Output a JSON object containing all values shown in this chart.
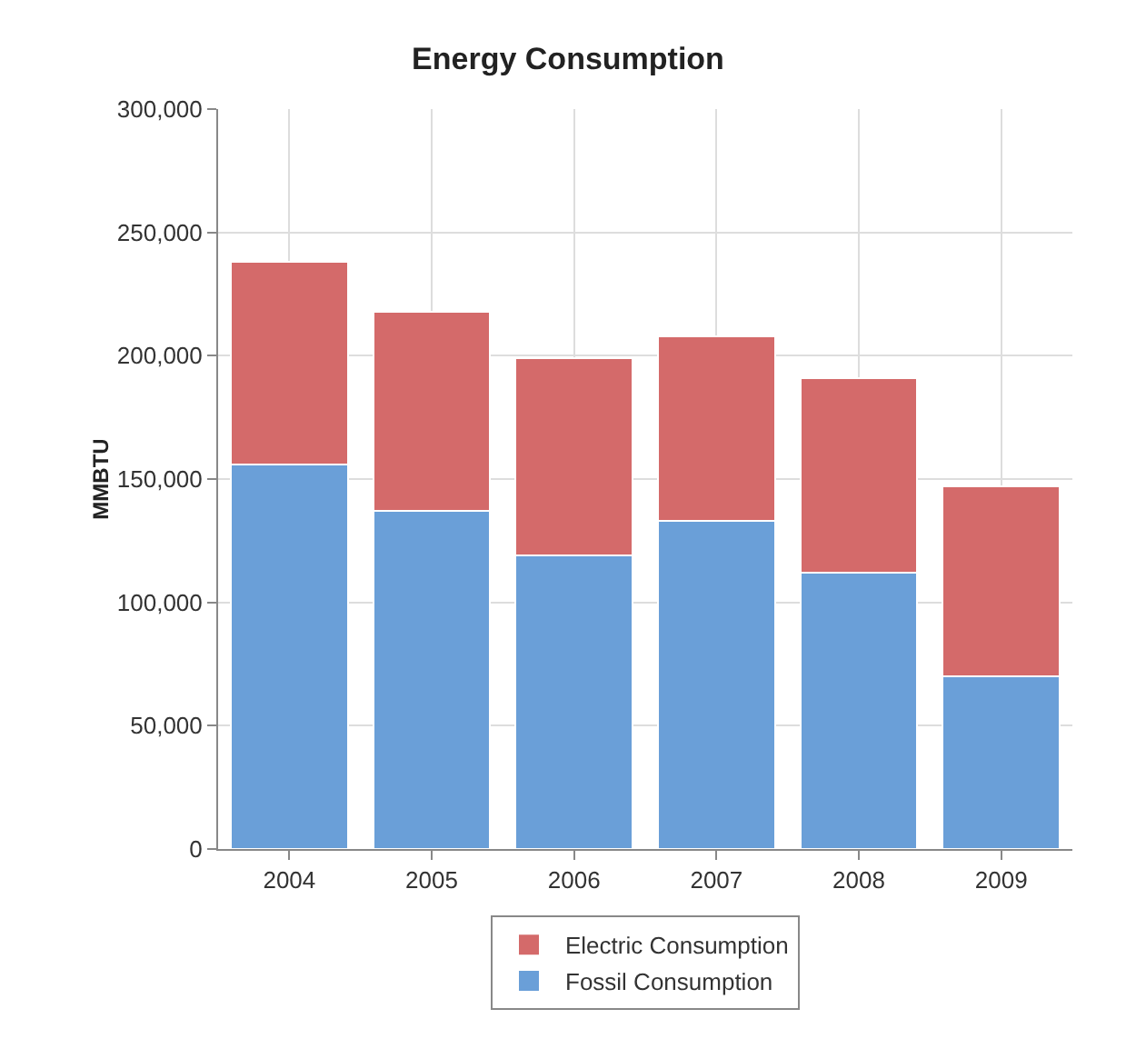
{
  "chart_data": {
    "type": "bar",
    "title": "Energy Consumption",
    "ylabel": "MMBTU",
    "categories": [
      "2004",
      "2005",
      "2006",
      "2007",
      "2008",
      "2009"
    ],
    "stacked": true,
    "series": [
      {
        "name": "Fossil Consumption",
        "color": "#6a9fd8",
        "values": [
          156000,
          137000,
          119000,
          133000,
          112000,
          70000
        ]
      },
      {
        "name": "Electric Consumption",
        "color": "#d46a6a",
        "values": [
          82000,
          81000,
          80000,
          75000,
          79000,
          77000
        ]
      }
    ],
    "ylim": [
      0,
      300000
    ],
    "yticks": [
      {
        "value": 0,
        "label": "0"
      },
      {
        "value": 50000,
        "label": "50,000"
      },
      {
        "value": 100000,
        "label": "100,000"
      },
      {
        "value": 150000,
        "label": "150,000"
      },
      {
        "value": 200000,
        "label": "200,000"
      },
      {
        "value": 250000,
        "label": "250,000"
      },
      {
        "value": 300000,
        "label": "300,000"
      }
    ],
    "grid": true,
    "legend": "bottom"
  }
}
